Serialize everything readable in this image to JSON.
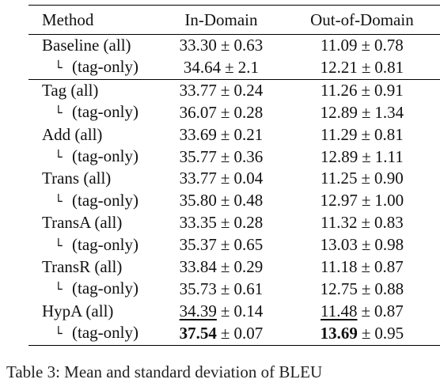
{
  "table": {
    "headers": {
      "method": "Method",
      "in_domain": "In-Domain",
      "out_domain": "Out-of-Domain"
    },
    "sub_mark": "└",
    "pm": "±",
    "rows": [
      {
        "method": "Baseline (all)",
        "sub": false,
        "in_mean": "33.30",
        "in_std": "0.63",
        "out_mean": "11.09",
        "out_std": "0.78"
      },
      {
        "method": "(tag-only)",
        "sub": true,
        "in_mean": "34.64",
        "in_std": "2.1",
        "out_mean": "12.21",
        "out_std": "0.81"
      },
      {
        "method": "Tag (all)",
        "sub": false,
        "in_mean": "33.77",
        "in_std": "0.24",
        "out_mean": "11.26",
        "out_std": "0.91"
      },
      {
        "method": "(tag-only)",
        "sub": true,
        "in_mean": "36.07",
        "in_std": "0.28",
        "out_mean": "12.89",
        "out_std": "1.34"
      },
      {
        "method": "Add (all)",
        "sub": false,
        "in_mean": "33.69",
        "in_std": "0.21",
        "out_mean": "11.29",
        "out_std": "0.81"
      },
      {
        "method": "(tag-only)",
        "sub": true,
        "in_mean": "35.77",
        "in_std": "0.36",
        "out_mean": "12.89",
        "out_std": "1.11"
      },
      {
        "method": "Trans (all)",
        "sub": false,
        "in_mean": "33.77",
        "in_std": "0.04",
        "out_mean": "11.25",
        "out_std": "0.90"
      },
      {
        "method": "(tag-only)",
        "sub": true,
        "in_mean": "35.80",
        "in_std": "0.48",
        "out_mean": "12.97",
        "out_std": "1.00"
      },
      {
        "method": "TransA (all)",
        "sub": false,
        "in_mean": "33.35",
        "in_std": "0.28",
        "out_mean": "11.32",
        "out_std": "0.83"
      },
      {
        "method": "(tag-only)",
        "sub": true,
        "in_mean": "35.37",
        "in_std": "0.65",
        "out_mean": "13.03",
        "out_std": "0.98"
      },
      {
        "method": "TransR (all)",
        "sub": false,
        "in_mean": "33.84",
        "in_std": "0.29",
        "out_mean": "11.18",
        "out_std": "0.87"
      },
      {
        "method": "(tag-only)",
        "sub": true,
        "in_mean": "35.73",
        "in_std": "0.61",
        "out_mean": "12.75",
        "out_std": "0.88"
      },
      {
        "method": "HypA (all)",
        "sub": false,
        "in_mean": "34.39",
        "in_std": "0.14",
        "out_mean": "11.48",
        "out_std": "0.87",
        "in_style": "underline",
        "out_style": "underline"
      },
      {
        "method": "(tag-only)",
        "sub": true,
        "in_mean": "37.54",
        "in_std": "0.07",
        "out_mean": "13.69",
        "out_std": "0.95",
        "in_style": "bold",
        "out_style": "bold"
      }
    ]
  },
  "caption": "Table 3: Mean and standard deviation of BLEU"
}
